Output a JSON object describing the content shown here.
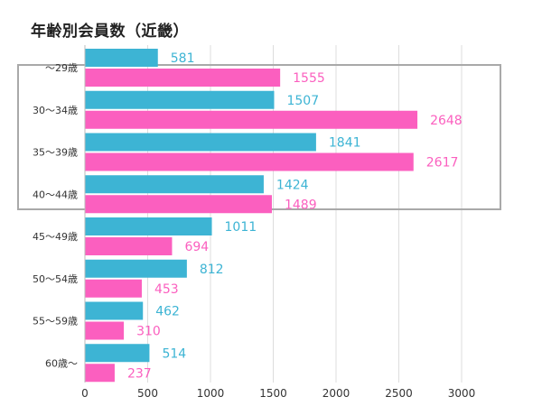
{
  "chart_data": {
    "type": "bar",
    "orientation": "horizontal",
    "title": "年齢別会員数（近畿）",
    "categories": [
      "〜29歳",
      "30〜34歳",
      "35〜39歳",
      "40〜44歳",
      "45〜49歳",
      "50〜54歳",
      "55〜59歳",
      "60歳〜"
    ],
    "series": [
      {
        "color": "#3db4d4",
        "values": [
          581,
          1507,
          1841,
          1424,
          1011,
          812,
          462,
          514
        ]
      },
      {
        "color": "#fb5fbf",
        "values": [
          1555,
          2648,
          2617,
          1489,
          694,
          453,
          310,
          237
        ]
      }
    ],
    "x_ticks": [
      "0",
      "500",
      "1000",
      "1500",
      "2000",
      "2500",
      "3000"
    ],
    "xlim": [
      0,
      3000
    ],
    "grid": true,
    "highlight_categories": [
      "〜29歳",
      "30〜34歳",
      "35〜39歳",
      "40〜44歳"
    ]
  }
}
